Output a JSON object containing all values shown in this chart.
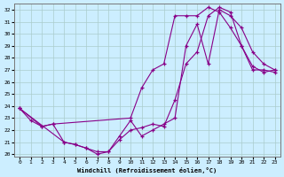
{
  "xlabel": "Windchill (Refroidissement éolien,°C)",
  "bg_color": "#cceeff",
  "grid_color": "#aacccc",
  "line_color": "#880088",
  "xlim": [
    -0.5,
    23.5
  ],
  "ylim": [
    19.8,
    32.5
  ],
  "xticks": [
    0,
    1,
    2,
    3,
    4,
    5,
    6,
    7,
    8,
    9,
    10,
    11,
    12,
    13,
    14,
    15,
    16,
    17,
    18,
    19,
    20,
    21,
    22,
    23
  ],
  "yticks": [
    20,
    21,
    22,
    23,
    24,
    25,
    26,
    27,
    28,
    29,
    30,
    31,
    32
  ],
  "line1_x": [
    0,
    1,
    2,
    3,
    4,
    5,
    6,
    7,
    8,
    9,
    10,
    11,
    12,
    13,
    14,
    15,
    16,
    17,
    18,
    19,
    20,
    21,
    22,
    23
  ],
  "line1_y": [
    23.8,
    22.8,
    22.3,
    22.5,
    21.0,
    20.8,
    20.5,
    20.0,
    20.2,
    21.2,
    22.0,
    22.2,
    22.5,
    22.3,
    24.5,
    27.5,
    28.5,
    31.5,
    32.2,
    31.8,
    29.0,
    27.3,
    26.8,
    27.0
  ],
  "line2_x": [
    0,
    2,
    3,
    10,
    11,
    12,
    13,
    14,
    15,
    16,
    17,
    18,
    19,
    20,
    21,
    22,
    23
  ],
  "line2_y": [
    23.8,
    22.3,
    22.5,
    23.0,
    25.5,
    27.0,
    27.5,
    31.5,
    31.5,
    31.5,
    32.2,
    31.8,
    30.5,
    29.0,
    27.0,
    27.0,
    26.8
  ],
  "line3_x": [
    0,
    4,
    5,
    6,
    7,
    8,
    9,
    10,
    11,
    12,
    13,
    14,
    15,
    16,
    17,
    18,
    19,
    20,
    21,
    22,
    23
  ],
  "line3_y": [
    23.8,
    21.0,
    20.8,
    20.5,
    20.2,
    20.2,
    21.5,
    22.8,
    21.5,
    22.0,
    22.5,
    23.0,
    29.0,
    30.8,
    27.5,
    32.0,
    31.5,
    30.5,
    28.5,
    27.5,
    27.0
  ]
}
